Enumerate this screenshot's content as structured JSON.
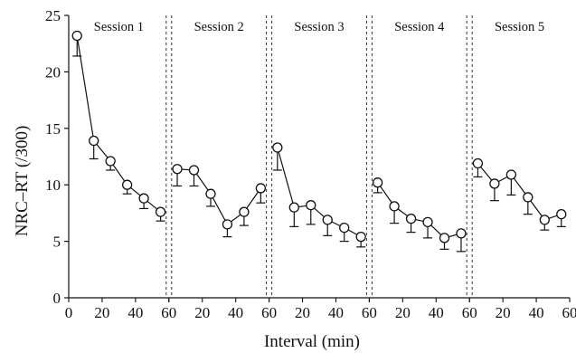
{
  "chart_data": {
    "type": "line",
    "title": "",
    "xlabel": "Interval (min)",
    "ylabel": "NRC–RT (/300)",
    "ylim": [
      0,
      25
    ],
    "yticks": [
      0,
      5,
      10,
      15,
      20,
      25
    ],
    "xlim_per_session": [
      0,
      60
    ],
    "xticks": [
      0,
      20,
      40,
      60
    ],
    "xtick_labels_first_panel": [
      "0",
      "20",
      "40",
      "60"
    ],
    "xtick_labels_other_panels": [
      "",
      "20",
      "40",
      "60"
    ],
    "error_bars": "below",
    "marker": "open-circle",
    "grid": false,
    "sessions": [
      {
        "name": "Session 1",
        "x": [
          5,
          15,
          25,
          35,
          45,
          55
        ],
        "y": [
          23.2,
          13.9,
          12.1,
          10.0,
          8.8,
          7.6
        ],
        "err": [
          1.8,
          1.6,
          0.8,
          0.8,
          0.9,
          0.8
        ]
      },
      {
        "name": "Session 2",
        "x": [
          5,
          15,
          25,
          35,
          45,
          55
        ],
        "y": [
          11.4,
          11.3,
          9.2,
          6.5,
          7.6,
          9.7
        ],
        "err": [
          1.5,
          1.4,
          1.1,
          1.1,
          1.2,
          1.3
        ]
      },
      {
        "name": "Session 3",
        "x": [
          5,
          15,
          25,
          35,
          45,
          55
        ],
        "y": [
          13.3,
          8.0,
          8.2,
          6.9,
          6.2,
          5.4
        ],
        "err": [
          2.0,
          1.7,
          1.7,
          1.4,
          1.2,
          0.9
        ]
      },
      {
        "name": "Session 4",
        "x": [
          5,
          15,
          25,
          35,
          45,
          55
        ],
        "y": [
          10.2,
          8.1,
          7.0,
          6.7,
          5.3,
          5.7
        ],
        "err": [
          0.9,
          1.5,
          1.2,
          1.4,
          1.0,
          1.6
        ]
      },
      {
        "name": "Session 5",
        "x": [
          5,
          15,
          25,
          35,
          45,
          55
        ],
        "y": [
          11.9,
          10.1,
          10.9,
          8.9,
          6.9,
          7.4
        ],
        "err": [
          1.2,
          1.5,
          1.8,
          1.5,
          0.9,
          1.1
        ]
      }
    ]
  }
}
